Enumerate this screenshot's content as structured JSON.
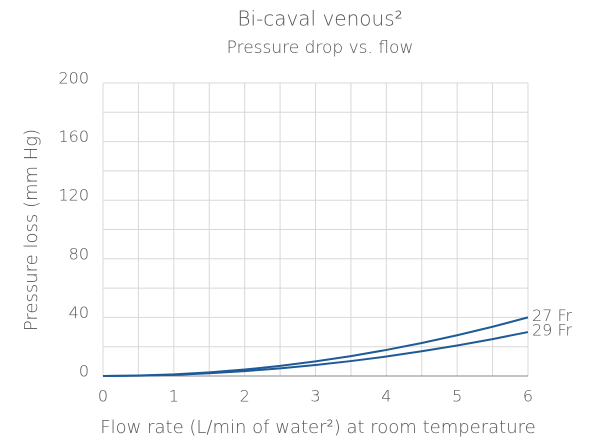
{
  "chart_data": {
    "type": "line",
    "title": "Bi-caval venous²",
    "subtitle": "Pressure drop vs. flow",
    "x_label": "Flow rate (L/min of water²) at room temperature",
    "y_label": "Pressure loss (mm Hg)",
    "x": [
      0,
      0.5,
      1,
      1.5,
      2,
      2.5,
      3,
      3.5,
      4,
      4.5,
      5,
      5.5,
      6
    ],
    "series": [
      {
        "name": "27 Fr",
        "color": "#1f5a96",
        "values": [
          0,
          0.3,
          1.1,
          2.5,
          4.4,
          6.9,
          10,
          13.6,
          17.8,
          22.5,
          27.8,
          33.6,
          40
        ]
      },
      {
        "name": "29 Fr",
        "color": "#1f5a96",
        "values": [
          0,
          0.2,
          0.8,
          1.9,
          3.3,
          5.2,
          7.5,
          10.2,
          13.3,
          16.9,
          20.8,
          25.2,
          30
        ]
      }
    ],
    "xlim": [
      0,
      6
    ],
    "xticks": [
      0,
      1,
      2,
      3,
      4,
      5,
      6
    ],
    "ylim": [
      0,
      200
    ],
    "yticks": [
      0,
      40,
      80,
      120,
      160,
      200
    ],
    "grid": true
  }
}
